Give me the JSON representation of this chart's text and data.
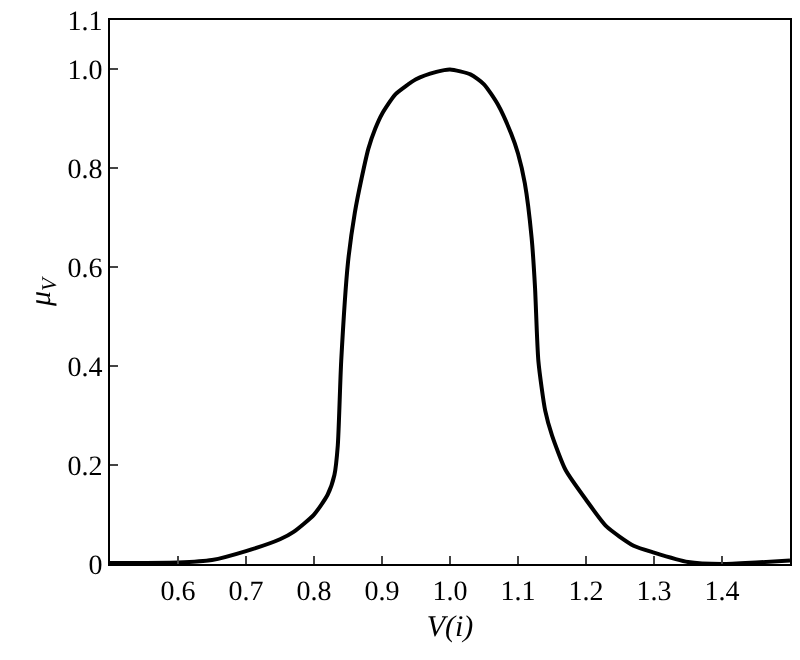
{
  "chart_data": {
    "type": "line",
    "xlabel": "V(i)",
    "ylabel": "μ$_{V}$",
    "x": [
      0.5,
      0.6,
      0.65,
      0.7,
      0.75,
      0.77,
      0.8,
      0.82,
      0.83,
      0.835,
      0.84,
      0.85,
      0.86,
      0.87,
      0.88,
      0.89,
      0.9,
      0.92,
      0.95,
      0.98,
      1.0,
      1.03,
      1.05,
      1.07,
      1.09,
      1.1,
      1.11,
      1.12,
      1.125,
      1.13,
      1.14,
      1.15,
      1.17,
      1.2,
      1.23,
      1.27,
      1.3,
      1.35,
      1.4,
      1.45,
      1.5
    ],
    "series": [
      {
        "color": "#000000",
        "values": [
          0.002,
          0.003,
          0.008,
          0.026,
          0.05,
          0.065,
          0.1,
          0.14,
          0.18,
          0.24,
          0.41,
          0.61,
          0.71,
          0.78,
          0.84,
          0.88,
          0.91,
          0.95,
          0.98,
          0.995,
          1.0,
          0.99,
          0.97,
          0.93,
          0.87,
          0.83,
          0.77,
          0.66,
          0.56,
          0.41,
          0.31,
          0.26,
          0.19,
          0.13,
          0.076,
          0.037,
          0.023,
          0.004,
          0,
          0.003,
          0.007
        ]
      }
    ],
    "xlim": [
      0.5,
      1.5
    ],
    "xticks": [
      {
        "value": 0.6,
        "label": "0.6"
      },
      {
        "value": 0.7,
        "label": "0.7"
      },
      {
        "value": 0.8,
        "label": "0.8"
      },
      {
        "value": 0.9,
        "label": "0.9"
      },
      {
        "value": 1,
        "label": "1.0"
      },
      {
        "value": 1.1,
        "label": "1.1"
      },
      {
        "value": 1.2,
        "label": "1.2"
      },
      {
        "value": 1.3,
        "label": "1.3"
      },
      {
        "value": 1.4,
        "label": "1.4"
      }
    ],
    "ylim": [
      0,
      1.1
    ],
    "yticks": [
      0,
      {
        "value": 0.2,
        "label": "0.2"
      },
      {
        "value": 0.4,
        "label": "0.4"
      },
      {
        "value": 0.6,
        "label": "0.6"
      },
      {
        "value": 0.8,
        "label": "0.8"
      },
      {
        "value": 1,
        "label": "1.0"
      },
      {
        "value": 1.1,
        "label": "1.1"
      }
    ],
    "grid": false,
    "marker": "none",
    "line_style": "solid"
  }
}
